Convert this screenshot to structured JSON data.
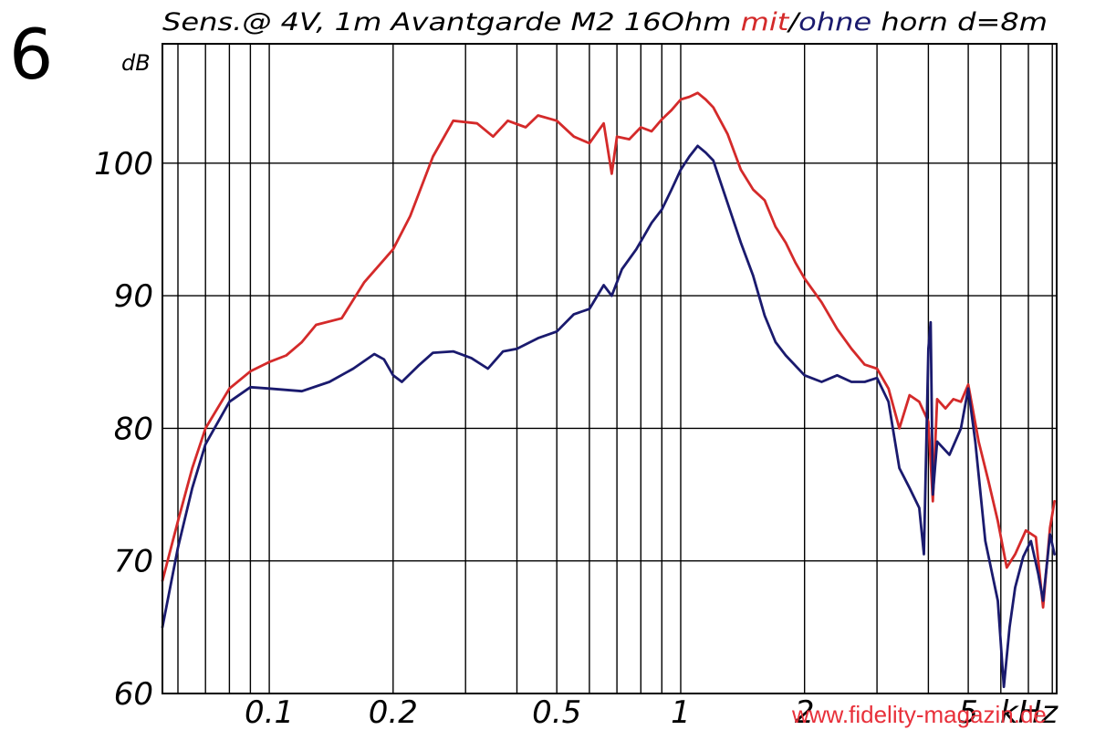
{
  "figure_number": "6",
  "watermark": "www.fidelity-magazin.de",
  "chart_data": {
    "type": "line",
    "title_parts": [
      "Sens.@ 4V, 1m Avantgarde M2 16Ohm ",
      "mit",
      "/",
      "ohne",
      " horn d=8m"
    ],
    "ylabel": "dB",
    "xlabel": "kHz",
    "x_scale": "log",
    "xlim": [
      0.055,
      8.2
    ],
    "ylim": [
      60,
      109
    ],
    "grid": true,
    "y_ticks": [
      60,
      70,
      80,
      90,
      100
    ],
    "x_tick_labels": [
      {
        "value": 0.1,
        "label": "0.1"
      },
      {
        "value": 0.2,
        "label": "0.2"
      },
      {
        "value": 0.5,
        "label": "0.5"
      },
      {
        "value": 1,
        "label": "1"
      },
      {
        "value": 2,
        "label": "2"
      },
      {
        "value": 5,
        "label": "5"
      }
    ],
    "series": [
      {
        "name": "mit",
        "color": "#d42a2a",
        "points": [
          [
            0.055,
            68.5
          ],
          [
            0.06,
            73
          ],
          [
            0.065,
            77
          ],
          [
            0.07,
            80
          ],
          [
            0.08,
            83
          ],
          [
            0.09,
            84.3
          ],
          [
            0.1,
            85
          ],
          [
            0.11,
            85.5
          ],
          [
            0.12,
            86.5
          ],
          [
            0.13,
            87.8
          ],
          [
            0.15,
            88.3
          ],
          [
            0.17,
            91
          ],
          [
            0.2,
            93.5
          ],
          [
            0.22,
            96
          ],
          [
            0.25,
            100.5
          ],
          [
            0.28,
            103.2
          ],
          [
            0.32,
            103
          ],
          [
            0.35,
            102
          ],
          [
            0.38,
            103.2
          ],
          [
            0.42,
            102.7
          ],
          [
            0.45,
            103.6
          ],
          [
            0.5,
            103.2
          ],
          [
            0.55,
            102
          ],
          [
            0.6,
            101.5
          ],
          [
            0.65,
            103
          ],
          [
            0.68,
            99.2
          ],
          [
            0.7,
            102
          ],
          [
            0.75,
            101.8
          ],
          [
            0.8,
            102.7
          ],
          [
            0.85,
            102.4
          ],
          [
            0.9,
            103.3
          ],
          [
            0.95,
            104
          ],
          [
            1,
            104.8
          ],
          [
            1.05,
            105
          ],
          [
            1.1,
            105.3
          ],
          [
            1.15,
            104.8
          ],
          [
            1.2,
            104.2
          ],
          [
            1.3,
            102.2
          ],
          [
            1.4,
            99.5
          ],
          [
            1.5,
            98
          ],
          [
            1.6,
            97.2
          ],
          [
            1.7,
            95.2
          ],
          [
            1.8,
            94
          ],
          [
            1.9,
            92.5
          ],
          [
            2,
            91.3
          ],
          [
            2.2,
            89.5
          ],
          [
            2.4,
            87.5
          ],
          [
            2.6,
            86
          ],
          [
            2.8,
            84.8
          ],
          [
            3,
            84.5
          ],
          [
            3.2,
            83
          ],
          [
            3.4,
            80
          ],
          [
            3.6,
            82.5
          ],
          [
            3.8,
            82
          ],
          [
            4,
            80.5
          ],
          [
            4.1,
            74.5
          ],
          [
            4.2,
            82.2
          ],
          [
            4.4,
            81.5
          ],
          [
            4.6,
            82.2
          ],
          [
            4.8,
            82
          ],
          [
            5,
            83.3
          ],
          [
            5.3,
            79
          ],
          [
            5.6,
            76
          ],
          [
            5.9,
            73
          ],
          [
            6.2,
            69.5
          ],
          [
            6.5,
            70.5
          ],
          [
            6.9,
            72.3
          ],
          [
            7.3,
            71.8
          ],
          [
            7.6,
            66.5
          ],
          [
            7.9,
            72.5
          ],
          [
            8.1,
            74.5
          ]
        ]
      },
      {
        "name": "ohne",
        "color": "#1a1a6e",
        "points": [
          [
            0.055,
            65
          ],
          [
            0.06,
            71
          ],
          [
            0.065,
            75.5
          ],
          [
            0.07,
            78.8
          ],
          [
            0.08,
            82
          ],
          [
            0.09,
            83.1
          ],
          [
            0.1,
            83
          ],
          [
            0.12,
            82.8
          ],
          [
            0.14,
            83.5
          ],
          [
            0.16,
            84.5
          ],
          [
            0.18,
            85.6
          ],
          [
            0.19,
            85.2
          ],
          [
            0.2,
            84
          ],
          [
            0.21,
            83.5
          ],
          [
            0.23,
            84.7
          ],
          [
            0.25,
            85.7
          ],
          [
            0.28,
            85.8
          ],
          [
            0.31,
            85.3
          ],
          [
            0.34,
            84.5
          ],
          [
            0.37,
            85.8
          ],
          [
            0.4,
            86
          ],
          [
            0.45,
            86.8
          ],
          [
            0.5,
            87.3
          ],
          [
            0.55,
            88.6
          ],
          [
            0.6,
            89
          ],
          [
            0.65,
            90.8
          ],
          [
            0.68,
            90
          ],
          [
            0.72,
            92
          ],
          [
            0.78,
            93.5
          ],
          [
            0.85,
            95.5
          ],
          [
            0.9,
            96.5
          ],
          [
            0.95,
            98
          ],
          [
            1,
            99.5
          ],
          [
            1.05,
            100.5
          ],
          [
            1.1,
            101.3
          ],
          [
            1.15,
            100.8
          ],
          [
            1.2,
            100.2
          ],
          [
            1.3,
            97
          ],
          [
            1.4,
            94
          ],
          [
            1.5,
            91.5
          ],
          [
            1.6,
            88.5
          ],
          [
            1.7,
            86.5
          ],
          [
            1.8,
            85.5
          ],
          [
            2,
            84
          ],
          [
            2.2,
            83.5
          ],
          [
            2.4,
            84
          ],
          [
            2.6,
            83.5
          ],
          [
            2.8,
            83.5
          ],
          [
            3,
            83.8
          ],
          [
            3.2,
            82
          ],
          [
            3.4,
            77
          ],
          [
            3.6,
            75.5
          ],
          [
            3.8,
            74
          ],
          [
            3.9,
            70.5
          ],
          [
            4,
            86
          ],
          [
            4.05,
            88
          ],
          [
            4.1,
            75
          ],
          [
            4.2,
            79
          ],
          [
            4.5,
            78
          ],
          [
            4.8,
            80
          ],
          [
            5,
            83
          ],
          [
            5.2,
            79
          ],
          [
            5.5,
            71.5
          ],
          [
            5.9,
            67
          ],
          [
            6.1,
            60.5
          ],
          [
            6.3,
            65
          ],
          [
            6.5,
            68
          ],
          [
            6.8,
            70.3
          ],
          [
            7.1,
            71.5
          ],
          [
            7.4,
            69
          ],
          [
            7.6,
            67
          ],
          [
            7.9,
            72
          ],
          [
            8.1,
            70.5
          ]
        ]
      }
    ]
  }
}
